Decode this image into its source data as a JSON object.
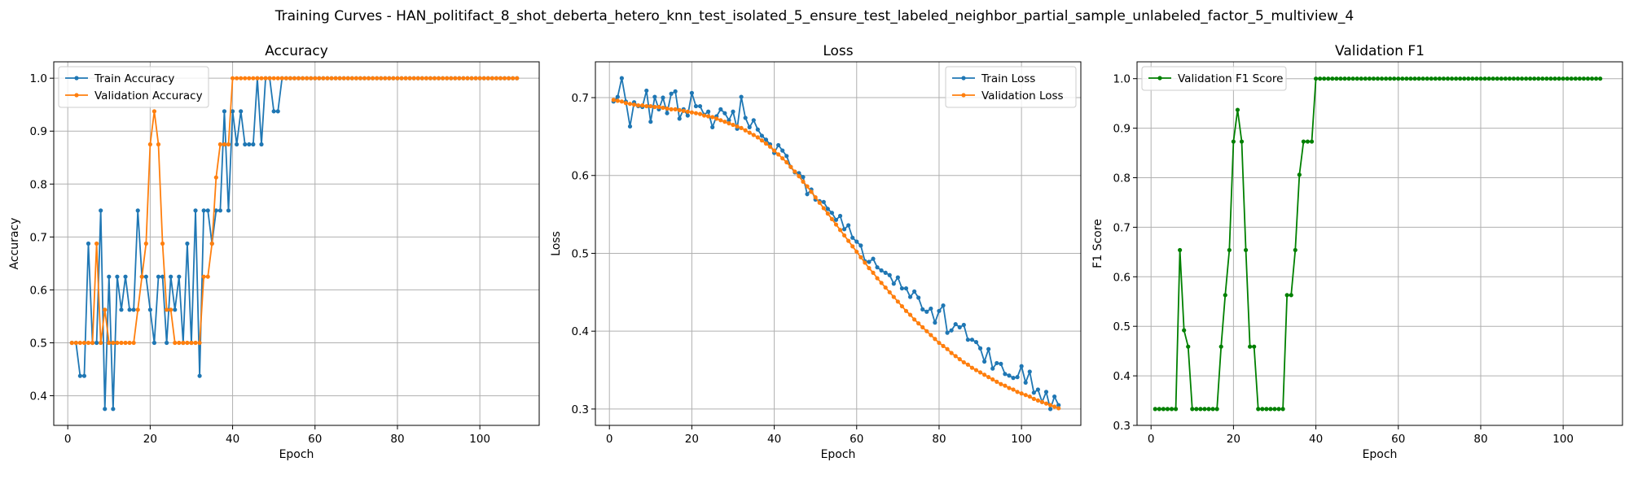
{
  "figure_title": "Training Curves - HAN_politifact_8_shot_deberta_hetero_knn_test_isolated_5_ensure_test_labeled_neighbor_partial_sample_unlabeled_factor_5_multiview_4",
  "colors": {
    "train": "#1f77b4",
    "validation": "#ff7f0e",
    "f1": "#008000"
  },
  "chart_data": [
    {
      "type": "line",
      "title": "Accuracy",
      "xlabel": "Epoch",
      "ylabel": "Accuracy",
      "xlim": [
        -3.4,
        114.4
      ],
      "ylim": [
        0.344,
        1.031
      ],
      "xticks": [
        0,
        20,
        40,
        60,
        80,
        100
      ],
      "yticks": [
        0.4,
        0.5,
        0.6,
        0.7,
        0.8,
        0.9,
        1.0
      ],
      "ytick_labels": [
        "0.4",
        "0.5",
        "0.6",
        "0.7",
        "0.8",
        "0.9",
        "1.0"
      ],
      "grid": true,
      "legend": "top-left",
      "x": [
        1,
        2,
        3,
        4,
        5,
        6,
        7,
        8,
        9,
        10,
        11,
        12,
        13,
        14,
        15,
        16,
        17,
        18,
        19,
        20,
        21,
        22,
        23,
        24,
        25,
        26,
        27,
        28,
        29,
        30,
        31,
        32,
        33,
        34,
        35,
        36,
        37,
        38,
        39,
        40,
        41,
        42,
        43,
        44,
        45,
        46,
        47,
        48,
        49,
        50,
        51,
        52,
        53,
        54,
        55,
        56,
        57,
        58,
        59,
        60,
        61,
        62,
        63,
        64,
        65,
        66,
        67,
        68,
        69,
        70,
        71,
        72,
        73,
        74,
        75,
        76,
        77,
        78,
        79,
        80,
        81,
        82,
        83,
        84,
        85,
        86,
        87,
        88,
        89,
        90,
        91,
        92,
        93,
        94,
        95,
        96,
        97,
        98,
        99,
        100,
        101,
        102,
        103,
        104,
        105,
        106,
        107,
        108,
        109
      ],
      "series": [
        {
          "name": "Train Accuracy",
          "color": "#1f77b4",
          "values": [
            0.5,
            0.5,
            0.4375,
            0.4375,
            0.6875,
            0.5,
            0.5,
            0.75,
            0.375,
            0.625,
            0.375,
            0.625,
            0.5625,
            0.625,
            0.5625,
            0.5625,
            0.75,
            0.625,
            0.625,
            0.5625,
            0.5,
            0.625,
            0.625,
            0.5,
            0.625,
            0.5625,
            0.625,
            0.5,
            0.6875,
            0.5,
            0.75,
            0.4375,
            0.75,
            0.75,
            0.6875,
            0.75,
            0.75,
            0.9375,
            0.75,
            0.9375,
            0.875,
            0.9375,
            0.875,
            0.875,
            0.875,
            1.0,
            0.875,
            1.0,
            1.0,
            0.9375,
            0.9375,
            1.0,
            1.0,
            1.0,
            1.0,
            1.0,
            1.0,
            1.0,
            1.0,
            1.0,
            1.0,
            1.0,
            1.0,
            1.0,
            1.0,
            1.0,
            1.0,
            1.0,
            1.0,
            1.0,
            1.0,
            1.0,
            1.0,
            1.0,
            1.0,
            1.0,
            1.0,
            1.0,
            1.0,
            1.0,
            1.0,
            1.0,
            1.0,
            1.0,
            1.0,
            1.0,
            1.0,
            1.0,
            1.0,
            1.0,
            1.0,
            1.0,
            1.0,
            1.0,
            1.0,
            1.0,
            1.0,
            1.0,
            1.0,
            1.0,
            1.0,
            1.0,
            1.0,
            1.0,
            1.0,
            1.0,
            1.0,
            1.0,
            1.0
          ]
        },
        {
          "name": "Validation Accuracy",
          "color": "#ff7f0e",
          "values": [
            0.5,
            0.5,
            0.5,
            0.5,
            0.5,
            0.5,
            0.6875,
            0.5,
            0.5625,
            0.5,
            0.5,
            0.5,
            0.5,
            0.5,
            0.5,
            0.5,
            0.5625,
            0.625,
            0.6875,
            0.875,
            0.9375,
            0.875,
            0.6875,
            0.5625,
            0.5625,
            0.5,
            0.5,
            0.5,
            0.5,
            0.5,
            0.5,
            0.5,
            0.625,
            0.625,
            0.6875,
            0.8125,
            0.875,
            0.875,
            0.875,
            1.0,
            1.0,
            1.0,
            1.0,
            1.0,
            1.0,
            1.0,
            1.0,
            1.0,
            1.0,
            1.0,
            1.0,
            1.0,
            1.0,
            1.0,
            1.0,
            1.0,
            1.0,
            1.0,
            1.0,
            1.0,
            1.0,
            1.0,
            1.0,
            1.0,
            1.0,
            1.0,
            1.0,
            1.0,
            1.0,
            1.0,
            1.0,
            1.0,
            1.0,
            1.0,
            1.0,
            1.0,
            1.0,
            1.0,
            1.0,
            1.0,
            1.0,
            1.0,
            1.0,
            1.0,
            1.0,
            1.0,
            1.0,
            1.0,
            1.0,
            1.0,
            1.0,
            1.0,
            1.0,
            1.0,
            1.0,
            1.0,
            1.0,
            1.0,
            1.0,
            1.0,
            1.0,
            1.0,
            1.0,
            1.0,
            1.0,
            1.0,
            1.0,
            1.0,
            1.0
          ]
        }
      ]
    },
    {
      "type": "line",
      "title": "Loss",
      "xlabel": "Epoch",
      "ylabel": "Loss",
      "xlim": [
        -3.4,
        114.4
      ],
      "ylim": [
        0.279,
        0.746
      ],
      "xticks": [
        0,
        20,
        40,
        60,
        80,
        100
      ],
      "yticks": [
        0.3,
        0.4,
        0.5,
        0.6,
        0.7
      ],
      "ytick_labels": [
        "0.3",
        "0.4",
        "0.5",
        "0.6",
        "0.7"
      ],
      "grid": true,
      "legend": "top-right",
      "x": [
        1,
        2,
        3,
        4,
        5,
        6,
        7,
        8,
        9,
        10,
        11,
        12,
        13,
        14,
        15,
        16,
        17,
        18,
        19,
        20,
        21,
        22,
        23,
        24,
        25,
        26,
        27,
        28,
        29,
        30,
        31,
        32,
        33,
        34,
        35,
        36,
        37,
        38,
        39,
        40,
        41,
        42,
        43,
        44,
        45,
        46,
        47,
        48,
        49,
        50,
        51,
        52,
        53,
        54,
        55,
        56,
        57,
        58,
        59,
        60,
        61,
        62,
        63,
        64,
        65,
        66,
        67,
        68,
        69,
        70,
        71,
        72,
        73,
        74,
        75,
        76,
        77,
        78,
        79,
        80,
        81,
        82,
        83,
        84,
        85,
        86,
        87,
        88,
        89,
        90,
        91,
        92,
        93,
        94,
        95,
        96,
        97,
        98,
        99,
        100,
        101,
        102,
        103,
        104,
        105,
        106,
        107,
        108,
        109
      ],
      "series": [
        {
          "name": "Train Loss",
          "color": "#1f77b4",
          "values": [
            0.695,
            0.701,
            0.725,
            0.695,
            0.663,
            0.694,
            0.689,
            0.688,
            0.709,
            0.669,
            0.701,
            0.685,
            0.7,
            0.68,
            0.705,
            0.708,
            0.673,
            0.685,
            0.677,
            0.706,
            0.689,
            0.689,
            0.678,
            0.682,
            0.662,
            0.676,
            0.685,
            0.68,
            0.671,
            0.682,
            0.66,
            0.701,
            0.674,
            0.662,
            0.671,
            0.659,
            0.651,
            0.646,
            0.64,
            0.629,
            0.639,
            0.632,
            0.625,
            0.611,
            0.604,
            0.603,
            0.598,
            0.576,
            0.582,
            0.569,
            0.567,
            0.566,
            0.557,
            0.552,
            0.543,
            0.548,
            0.531,
            0.536,
            0.52,
            0.515,
            0.51,
            0.49,
            0.489,
            0.493,
            0.482,
            0.478,
            0.475,
            0.472,
            0.461,
            0.469,
            0.455,
            0.455,
            0.444,
            0.451,
            0.443,
            0.428,
            0.425,
            0.429,
            0.411,
            0.426,
            0.433,
            0.398,
            0.401,
            0.409,
            0.405,
            0.408,
            0.389,
            0.389,
            0.386,
            0.378,
            0.361,
            0.377,
            0.352,
            0.359,
            0.358,
            0.345,
            0.343,
            0.34,
            0.341,
            0.355,
            0.334,
            0.348,
            0.321,
            0.325,
            0.309,
            0.322,
            0.3,
            0.316,
            0.305
          ]
        },
        {
          "name": "Validation Loss",
          "color": "#ff7f0e",
          "values": [
            0.697,
            0.696,
            0.695,
            0.693,
            0.692,
            0.691,
            0.69,
            0.69,
            0.689,
            0.689,
            0.688,
            0.688,
            0.687,
            0.686,
            0.685,
            0.685,
            0.684,
            0.683,
            0.682,
            0.681,
            0.68,
            0.679,
            0.677,
            0.676,
            0.675,
            0.673,
            0.671,
            0.669,
            0.667,
            0.665,
            0.663,
            0.661,
            0.658,
            0.655,
            0.652,
            0.649,
            0.645,
            0.641,
            0.637,
            0.632,
            0.627,
            0.622,
            0.617,
            0.611,
            0.605,
            0.599,
            0.592,
            0.586,
            0.579,
            0.572,
            0.565,
            0.558,
            0.551,
            0.544,
            0.537,
            0.53,
            0.523,
            0.516,
            0.509,
            0.502,
            0.495,
            0.488,
            0.481,
            0.475,
            0.468,
            0.462,
            0.456,
            0.45,
            0.444,
            0.438,
            0.432,
            0.426,
            0.421,
            0.415,
            0.41,
            0.405,
            0.4,
            0.395,
            0.39,
            0.385,
            0.381,
            0.377,
            0.372,
            0.368,
            0.364,
            0.36,
            0.357,
            0.353,
            0.35,
            0.347,
            0.344,
            0.341,
            0.338,
            0.335,
            0.332,
            0.33,
            0.327,
            0.325,
            0.322,
            0.32,
            0.318,
            0.316,
            0.313,
            0.311,
            0.309,
            0.307,
            0.305,
            0.303,
            0.301
          ]
        }
      ]
    },
    {
      "type": "line",
      "title": "Validation F1",
      "xlabel": "Epoch",
      "ylabel": "F1 Score",
      "xlim": [
        -3.4,
        114.4
      ],
      "ylim": [
        0.3,
        1.034
      ],
      "xticks": [
        0,
        20,
        40,
        60,
        80,
        100
      ],
      "yticks": [
        0.3,
        0.4,
        0.5,
        0.6,
        0.7,
        0.8,
        0.9,
        1.0
      ],
      "ytick_labels": [
        "0.3",
        "0.4",
        "0.5",
        "0.6",
        "0.7",
        "0.8",
        "0.9",
        "1.0"
      ],
      "grid": true,
      "legend": "top-left",
      "x": [
        1,
        2,
        3,
        4,
        5,
        6,
        7,
        8,
        9,
        10,
        11,
        12,
        13,
        14,
        15,
        16,
        17,
        18,
        19,
        20,
        21,
        22,
        23,
        24,
        25,
        26,
        27,
        28,
        29,
        30,
        31,
        32,
        33,
        34,
        35,
        36,
        37,
        38,
        39,
        40,
        41,
        42,
        43,
        44,
        45,
        46,
        47,
        48,
        49,
        50,
        51,
        52,
        53,
        54,
        55,
        56,
        57,
        58,
        59,
        60,
        61,
        62,
        63,
        64,
        65,
        66,
        67,
        68,
        69,
        70,
        71,
        72,
        73,
        74,
        75,
        76,
        77,
        78,
        79,
        80,
        81,
        82,
        83,
        84,
        85,
        86,
        87,
        88,
        89,
        90,
        91,
        92,
        93,
        94,
        95,
        96,
        97,
        98,
        99,
        100,
        101,
        102,
        103,
        104,
        105,
        106,
        107,
        108,
        109
      ],
      "series": [
        {
          "name": "Validation F1 Score",
          "color": "#008000",
          "values": [
            0.333,
            0.333,
            0.333,
            0.333,
            0.333,
            0.333,
            0.654,
            0.492,
            0.459,
            0.333,
            0.333,
            0.333,
            0.333,
            0.333,
            0.333,
            0.333,
            0.459,
            0.563,
            0.654,
            0.873,
            0.937,
            0.873,
            0.654,
            0.459,
            0.459,
            0.333,
            0.333,
            0.333,
            0.333,
            0.333,
            0.333,
            0.333,
            0.563,
            0.563,
            0.654,
            0.806,
            0.873,
            0.873,
            0.873,
            1.0,
            1.0,
            1.0,
            1.0,
            1.0,
            1.0,
            1.0,
            1.0,
            1.0,
            1.0,
            1.0,
            1.0,
            1.0,
            1.0,
            1.0,
            1.0,
            1.0,
            1.0,
            1.0,
            1.0,
            1.0,
            1.0,
            1.0,
            1.0,
            1.0,
            1.0,
            1.0,
            1.0,
            1.0,
            1.0,
            1.0,
            1.0,
            1.0,
            1.0,
            1.0,
            1.0,
            1.0,
            1.0,
            1.0,
            1.0,
            1.0,
            1.0,
            1.0,
            1.0,
            1.0,
            1.0,
            1.0,
            1.0,
            1.0,
            1.0,
            1.0,
            1.0,
            1.0,
            1.0,
            1.0,
            1.0,
            1.0,
            1.0,
            1.0,
            1.0,
            1.0,
            1.0,
            1.0,
            1.0,
            1.0,
            1.0,
            1.0,
            1.0,
            1.0,
            1.0
          ]
        }
      ]
    }
  ]
}
